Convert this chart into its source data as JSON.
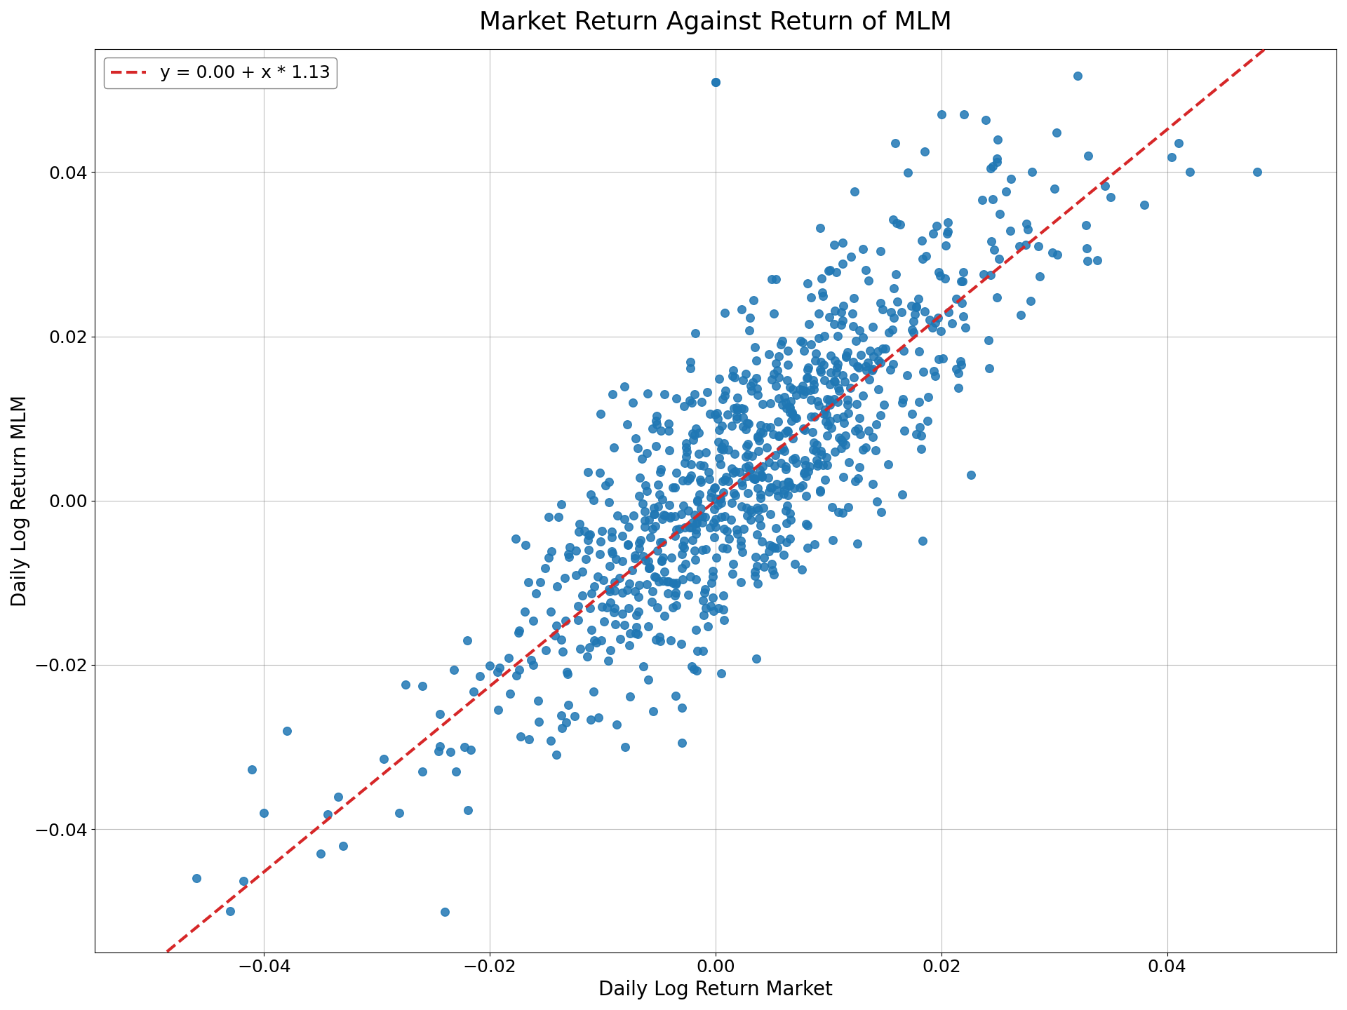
{
  "title": "Market Return Against Return of MLM",
  "xlabel": "Daily Log Return Market",
  "ylabel": "Daily Log Return MLM",
  "intercept": 0.0,
  "slope": 1.13,
  "legend_label": "y = 0.00 + x * 1.13",
  "xlim": [
    -0.055,
    0.055
  ],
  "ylim": [
    -0.055,
    0.055
  ],
  "xticks": [
    -0.04,
    -0.02,
    0.0,
    0.02,
    0.04
  ],
  "yticks": [
    -0.04,
    -0.02,
    0.0,
    0.02,
    0.04
  ],
  "scatter_color": "#1f77b4",
  "line_color": "#d62728",
  "scatter_alpha": 0.85,
  "scatter_size": 70,
  "seed": 42,
  "title_fontsize": 26,
  "label_fontsize": 20,
  "tick_fontsize": 18,
  "legend_fontsize": 18
}
